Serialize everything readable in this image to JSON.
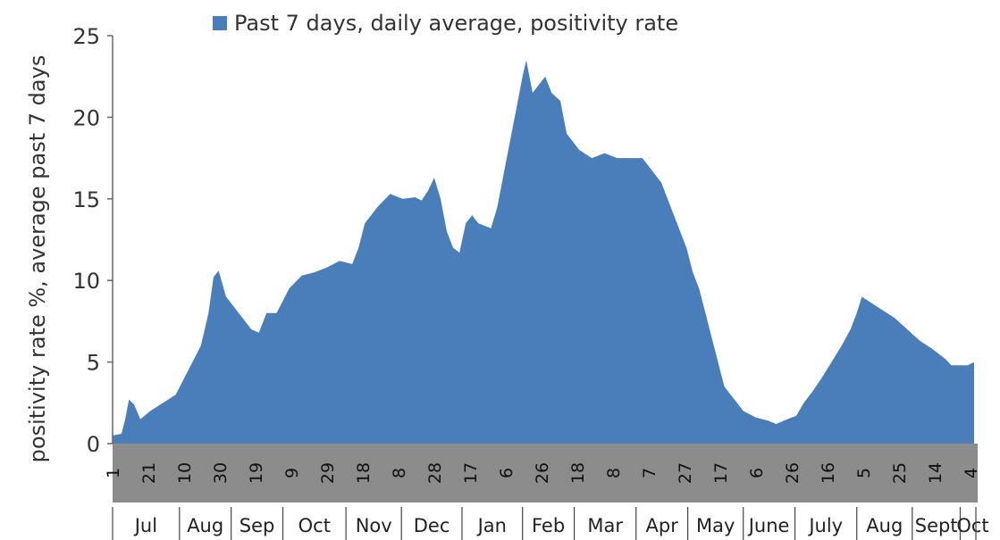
{
  "chart_data": {
    "type": "area",
    "title": "",
    "ylabel": "positivity rate %, average past 7 days",
    "xlabel": "",
    "ylim": [
      0,
      25
    ],
    "yticks": [
      0,
      5,
      10,
      15,
      20,
      25
    ],
    "grid": false,
    "legend_position": "top",
    "color": "#4a7ebb",
    "series": [
      {
        "name": "Past 7 days, daily average, positivity rate",
        "points": [
          [
            0,
            0.5
          ],
          [
            7,
            0.6
          ],
          [
            10,
            1.5
          ],
          [
            13,
            2.7
          ],
          [
            17,
            2.4
          ],
          [
            22,
            1.5
          ],
          [
            30,
            2.0
          ],
          [
            40,
            2.5
          ],
          [
            50,
            3.0
          ],
          [
            60,
            4.5
          ],
          [
            70,
            6.0
          ],
          [
            76,
            8.0
          ],
          [
            80,
            10.2
          ],
          [
            84,
            10.6
          ],
          [
            90,
            9.0
          ],
          [
            100,
            8.0
          ],
          [
            110,
            7.0
          ],
          [
            116,
            6.8
          ],
          [
            122,
            8.0
          ],
          [
            130,
            8.0
          ],
          [
            140,
            9.5
          ],
          [
            150,
            10.3
          ],
          [
            160,
            10.5
          ],
          [
            170,
            10.8
          ],
          [
            180,
            11.2
          ],
          [
            190,
            11.0
          ],
          [
            195,
            12.0
          ],
          [
            200,
            13.5
          ],
          [
            205,
            14.0
          ],
          [
            210,
            14.5
          ],
          [
            220,
            15.3
          ],
          [
            230,
            15.0
          ],
          [
            240,
            15.1
          ],
          [
            245,
            14.9
          ],
          [
            250,
            15.5
          ],
          [
            255,
            16.3
          ],
          [
            260,
            15.0
          ],
          [
            265,
            13.0
          ],
          [
            270,
            12.0
          ],
          [
            275,
            11.7
          ],
          [
            280,
            13.5
          ],
          [
            285,
            14.0
          ],
          [
            290,
            13.5
          ],
          [
            300,
            13.2
          ],
          [
            305,
            14.5
          ],
          [
            310,
            16.5
          ],
          [
            315,
            18.5
          ],
          [
            320,
            20.5
          ],
          [
            325,
            22.5
          ],
          [
            328,
            23.5
          ],
          [
            333,
            21.5
          ],
          [
            338,
            22.0
          ],
          [
            343,
            22.5
          ],
          [
            348,
            21.5
          ],
          [
            355,
            21.0
          ],
          [
            360,
            19.0
          ],
          [
            370,
            18.0
          ],
          [
            380,
            17.5
          ],
          [
            390,
            17.8
          ],
          [
            400,
            17.5
          ],
          [
            410,
            17.5
          ],
          [
            420,
            17.5
          ],
          [
            425,
            17.0
          ],
          [
            430,
            16.5
          ],
          [
            435,
            16.0
          ],
          [
            440,
            15.0
          ],
          [
            445,
            14.0
          ],
          [
            450,
            13.0
          ],
          [
            455,
            12.0
          ],
          [
            460,
            10.5
          ],
          [
            465,
            9.5
          ],
          [
            470,
            8.0
          ],
          [
            475,
            6.5
          ],
          [
            480,
            5.0
          ],
          [
            485,
            3.5
          ],
          [
            490,
            3.0
          ],
          [
            495,
            2.5
          ],
          [
            500,
            2.0
          ],
          [
            510,
            1.6
          ],
          [
            520,
            1.4
          ],
          [
            526,
            1.2
          ],
          [
            535,
            1.5
          ],
          [
            542,
            1.7
          ],
          [
            548,
            2.5
          ],
          [
            555,
            3.2
          ],
          [
            562,
            4.0
          ],
          [
            570,
            5.0
          ],
          [
            578,
            6.0
          ],
          [
            585,
            7.0
          ],
          [
            590,
            8.0
          ],
          [
            594,
            9.0
          ],
          [
            600,
            8.7
          ],
          [
            610,
            8.2
          ],
          [
            620,
            7.7
          ],
          [
            630,
            7.0
          ],
          [
            640,
            6.3
          ],
          [
            650,
            5.8
          ],
          [
            660,
            5.2
          ],
          [
            665,
            4.8
          ],
          [
            672,
            4.8
          ],
          [
            678,
            4.8
          ],
          [
            683,
            5.0
          ]
        ]
      }
    ],
    "day_ticks": [
      {
        "label": "1",
        "x": 0
      },
      {
        "label": "21",
        "x": 20
      },
      {
        "label": "10",
        "x": 40
      },
      {
        "label": "30",
        "x": 60
      },
      {
        "label": "19",
        "x": 80
      },
      {
        "label": "9",
        "x": 100
      },
      {
        "label": "29",
        "x": 120
      },
      {
        "label": "18",
        "x": 140
      },
      {
        "label": "8",
        "x": 160
      },
      {
        "label": "28",
        "x": 180
      },
      {
        "label": "17",
        "x": 200
      },
      {
        "label": "6",
        "x": 220
      },
      {
        "label": "26",
        "x": 240
      },
      {
        "label": "18",
        "x": 260
      },
      {
        "label": "8",
        "x": 280
      },
      {
        "label": "7",
        "x": 300
      },
      {
        "label": "27",
        "x": 320
      },
      {
        "label": "17",
        "x": 340
      },
      {
        "label": "6",
        "x": 360
      },
      {
        "label": "26",
        "x": 380
      },
      {
        "label": "16",
        "x": 400
      },
      {
        "label": "5",
        "x": 420
      },
      {
        "label": "25",
        "x": 440
      },
      {
        "label": "14",
        "x": 460
      },
      {
        "label": "4",
        "x": 480
      }
    ],
    "months": [
      {
        "label": "Jul",
        "start": 0,
        "end": 53
      },
      {
        "label": "Aug",
        "start": 53,
        "end": 94
      },
      {
        "label": "Sep",
        "start": 94,
        "end": 135
      },
      {
        "label": "Oct",
        "start": 135,
        "end": 185
      },
      {
        "label": "Nov",
        "start": 185,
        "end": 229
      },
      {
        "label": "Dec",
        "start": 229,
        "end": 277
      },
      {
        "label": "Jan",
        "start": 277,
        "end": 325
      },
      {
        "label": "Feb",
        "start": 325,
        "end": 366
      },
      {
        "label": "Mar",
        "start": 366,
        "end": 415
      },
      {
        "label": "Apr",
        "start": 415,
        "end": 456
      },
      {
        "label": "May",
        "start": 456,
        "end": 500
      },
      {
        "label": "June",
        "start": 500,
        "end": 541
      },
      {
        "label": "July",
        "start": 541,
        "end": 590
      },
      {
        "label": "Aug",
        "start": 590,
        "end": 634
      },
      {
        "label": "Sept",
        "start": 634,
        "end": 672
      },
      {
        "label": "Oct",
        "start": 672,
        "end": 683
      }
    ]
  }
}
